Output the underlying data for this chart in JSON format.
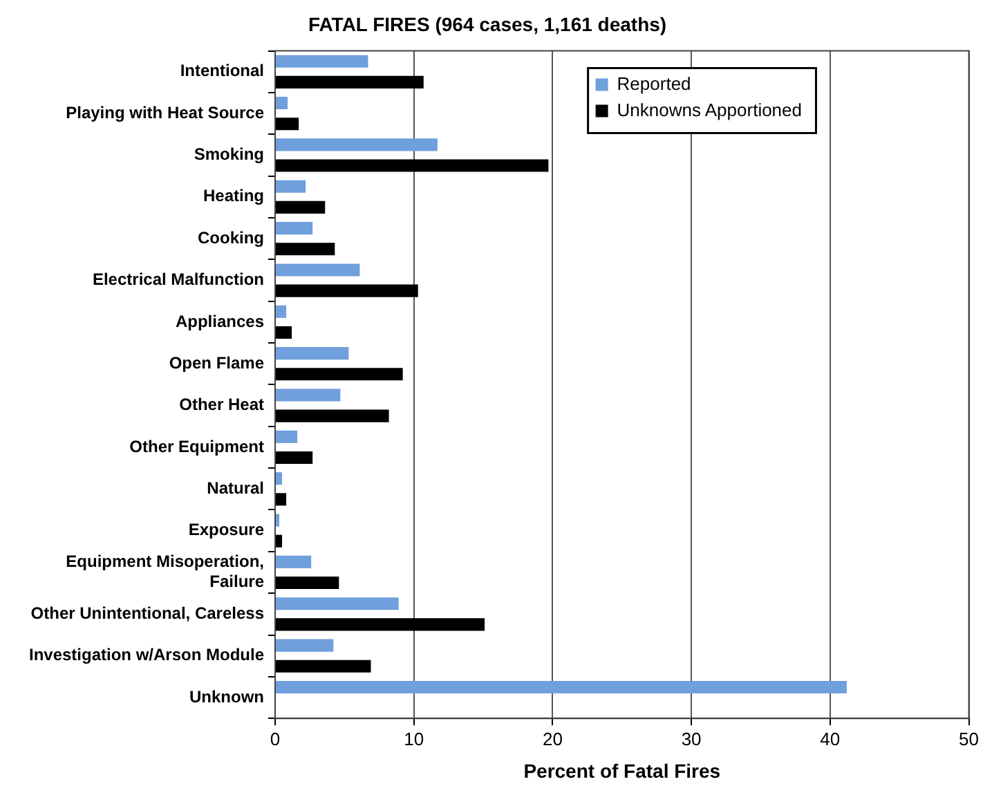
{
  "chart_data": {
    "type": "bar",
    "orientation": "horizontal",
    "title": "FATAL FIRES (964 cases, 1,161 deaths)",
    "xlabel": "Percent of Fatal Fires",
    "categories": [
      "Intentional",
      "Playing with Heat Source",
      "Smoking",
      "Heating",
      "Cooking",
      "Electrical Malfunction",
      "Appliances",
      "Open Flame",
      "Other Heat",
      "Other Equipment",
      "Natural",
      "Exposure",
      "Equipment Misoperation, Failure",
      "Other Unintentional, Careless",
      "Investigation w/Arson Module",
      "Unknown"
    ],
    "series": [
      {
        "name": "Reported",
        "color": "#6f9fdc",
        "values": [
          6.7,
          0.9,
          11.7,
          2.2,
          2.7,
          6.1,
          0.8,
          5.3,
          4.7,
          1.6,
          0.5,
          0.3,
          2.6,
          8.9,
          4.2,
          41.2
        ]
      },
      {
        "name": "Unknowns Apportioned",
        "color": "#000000",
        "values": [
          10.7,
          1.7,
          19.7,
          3.6,
          4.3,
          10.3,
          1.2,
          9.2,
          8.2,
          2.7,
          0.8,
          0.5,
          4.6,
          15.1,
          6.9,
          null
        ]
      }
    ],
    "xlim": [
      0,
      50
    ],
    "xticks": [
      0,
      10,
      20,
      30,
      40,
      50
    ],
    "grid": "x",
    "legend": "top right"
  }
}
